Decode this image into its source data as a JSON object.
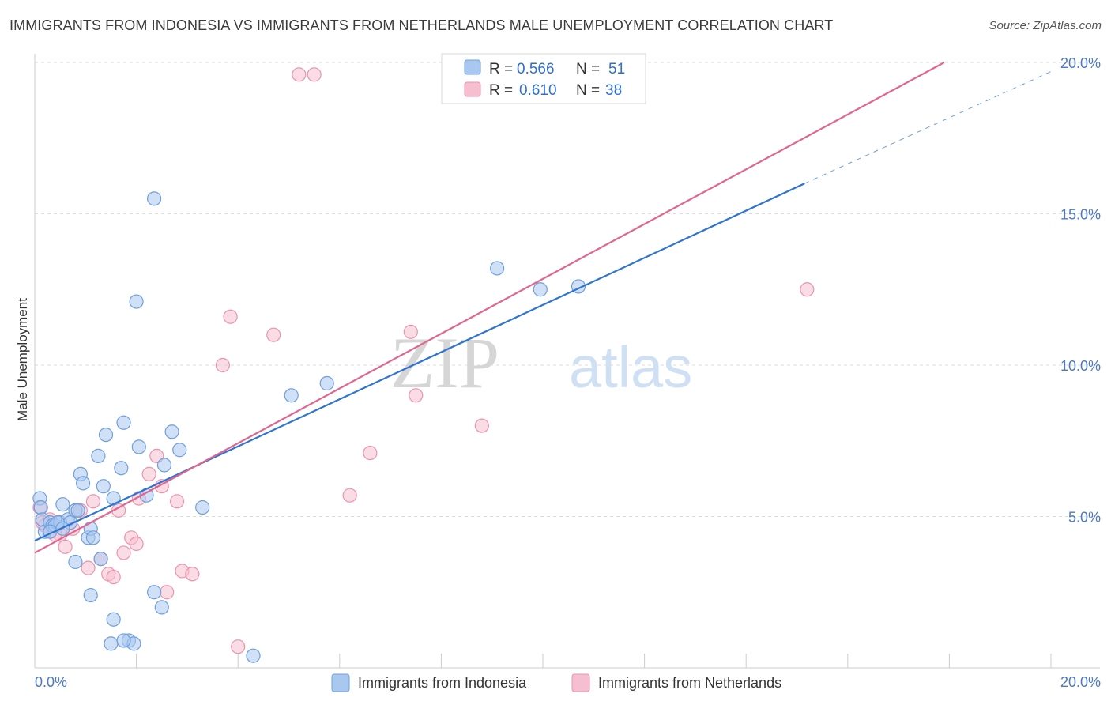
{
  "title": "IMMIGRANTS FROM INDONESIA VS IMMIGRANTS FROM NETHERLANDS MALE UNEMPLOYMENT CORRELATION CHART",
  "source": "Source: ZipAtlas.com",
  "watermark": {
    "zip": "ZIP",
    "atlas": "atlas"
  },
  "colors": {
    "indonesia_fill": "#a9c8f0",
    "indonesia_stroke": "#6f9fdc",
    "indonesia_line": "#2f74cf",
    "netherlands_fill": "#f6bfd0",
    "netherlands_stroke": "#eb93b0",
    "netherlands_line": "#e0668f",
    "value_text": "#2f6fce",
    "grid": "#dddddd"
  },
  "legend": {
    "r_label": "R =",
    "n_label": "N =",
    "rows": [
      {
        "r": "0.566",
        "n": "51"
      },
      {
        "r": "0.610",
        "n": "38"
      }
    ]
  },
  "chart_data": {
    "type": "scatter",
    "title": "IMMIGRANTS FROM INDONESIA VS IMMIGRANTS FROM NETHERLANDS MALE UNEMPLOYMENT CORRELATION CHART",
    "xlabel": "",
    "ylabel": "Male Unemployment",
    "xlim": [
      0,
      20.2
    ],
    "ylim": [
      0,
      20.5
    ],
    "x_tick_labels": {
      "left": "0.0%",
      "right": "20.0%"
    },
    "y_ticks": [
      5,
      10,
      15,
      20
    ],
    "y_tick_labels": [
      "5.0%",
      "10.0%",
      "15.0%",
      "20.0%"
    ],
    "legend_placement": "top-center",
    "series": [
      {
        "name": "Immigrants from Indonesia",
        "r": 0.566,
        "n": 51,
        "trend": {
          "x0": 0,
          "y0": 4.2,
          "x1": 15.15,
          "y1": 16.0,
          "dashed_to_x": 20.0,
          "dashed_to_y": 19.7
        },
        "points": [
          [
            0.1,
            5.6
          ],
          [
            0.12,
            5.3
          ],
          [
            0.15,
            4.9
          ],
          [
            0.2,
            4.5
          ],
          [
            0.3,
            4.8
          ],
          [
            0.35,
            4.7
          ],
          [
            0.4,
            4.7
          ],
          [
            0.5,
            4.8
          ],
          [
            0.55,
            5.4
          ],
          [
            0.65,
            4.9
          ],
          [
            0.7,
            4.8
          ],
          [
            0.8,
            5.2
          ],
          [
            0.85,
            5.2
          ],
          [
            0.9,
            6.4
          ],
          [
            0.95,
            6.1
          ],
          [
            1.05,
            4.3
          ],
          [
            1.1,
            4.6
          ],
          [
            1.15,
            4.3
          ],
          [
            1.25,
            7.0
          ],
          [
            1.35,
            6.0
          ],
          [
            1.4,
            7.7
          ],
          [
            1.55,
            5.6
          ],
          [
            1.7,
            6.6
          ],
          [
            1.75,
            8.1
          ],
          [
            1.85,
            0.9
          ],
          [
            1.95,
            0.8
          ],
          [
            2.0,
            12.1
          ],
          [
            2.05,
            7.3
          ],
          [
            2.2,
            5.7
          ],
          [
            2.35,
            15.5
          ],
          [
            2.55,
            6.7
          ],
          [
            2.7,
            7.8
          ],
          [
            2.85,
            7.2
          ],
          [
            3.3,
            5.3
          ],
          [
            4.3,
            0.4
          ],
          [
            5.05,
            9.0
          ],
          [
            5.75,
            9.4
          ],
          [
            9.1,
            13.2
          ],
          [
            9.95,
            12.5
          ],
          [
            10.7,
            12.6
          ],
          [
            1.75,
            0.9
          ],
          [
            1.55,
            1.6
          ],
          [
            1.1,
            2.4
          ],
          [
            0.8,
            3.5
          ],
          [
            1.3,
            3.6
          ],
          [
            2.35,
            2.5
          ],
          [
            2.5,
            2.0
          ],
          [
            1.5,
            0.8
          ],
          [
            0.45,
            4.8
          ],
          [
            0.55,
            4.6
          ],
          [
            0.3,
            4.5
          ]
        ]
      },
      {
        "name": "Immigrants from Netherlands",
        "r": 0.61,
        "n": 38,
        "trend": {
          "x0": 0,
          "y0": 3.8,
          "x1": 17.9,
          "y1": 20.0
        },
        "points": [
          [
            0.1,
            5.3
          ],
          [
            0.2,
            4.7
          ],
          [
            0.3,
            4.9
          ],
          [
            0.5,
            4.4
          ],
          [
            0.6,
            4.0
          ],
          [
            0.75,
            4.6
          ],
          [
            0.9,
            5.2
          ],
          [
            1.05,
            3.3
          ],
          [
            1.15,
            5.5
          ],
          [
            1.3,
            3.6
          ],
          [
            1.45,
            3.1
          ],
          [
            1.55,
            3.0
          ],
          [
            1.65,
            5.2
          ],
          [
            1.75,
            3.8
          ],
          [
            1.9,
            4.3
          ],
          [
            2.0,
            4.1
          ],
          [
            2.05,
            5.6
          ],
          [
            2.25,
            6.4
          ],
          [
            2.4,
            7.0
          ],
          [
            2.5,
            6.0
          ],
          [
            2.6,
            2.5
          ],
          [
            2.8,
            5.5
          ],
          [
            2.9,
            3.2
          ],
          [
            3.1,
            3.1
          ],
          [
            3.7,
            10.0
          ],
          [
            3.85,
            11.6
          ],
          [
            4.0,
            0.7
          ],
          [
            4.7,
            11.0
          ],
          [
            5.2,
            19.6
          ],
          [
            5.5,
            19.6
          ],
          [
            6.2,
            5.7
          ],
          [
            6.6,
            7.1
          ],
          [
            7.4,
            11.1
          ],
          [
            7.5,
            9.0
          ],
          [
            8.8,
            8.0
          ],
          [
            15.2,
            12.5
          ],
          [
            0.15,
            4.8
          ],
          [
            0.4,
            4.4
          ]
        ]
      }
    ]
  }
}
